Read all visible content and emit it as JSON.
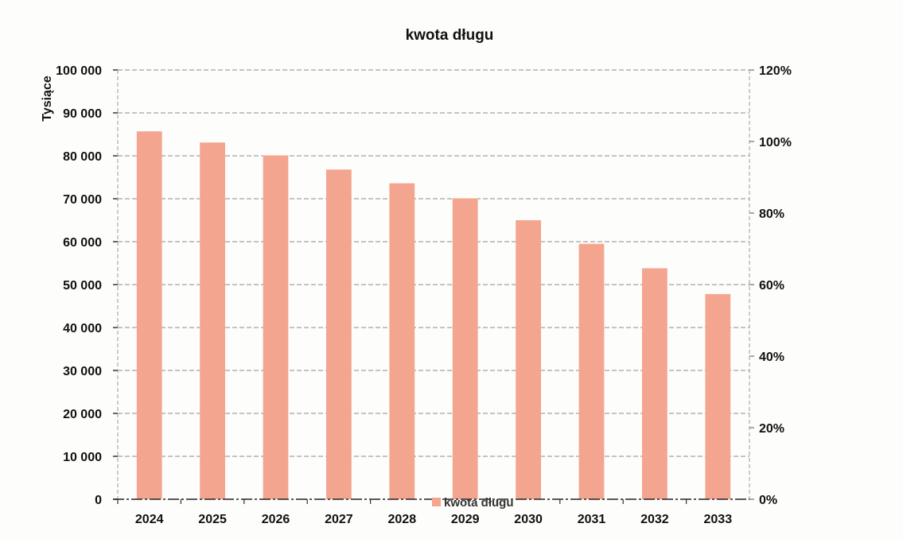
{
  "chart_data": {
    "type": "bar",
    "title": "kwota długu",
    "ylabel": "Tysiące",
    "categories": [
      "2024",
      "2025",
      "2026",
      "2027",
      "2028",
      "2029",
      "2030",
      "2031",
      "2032",
      "2033"
    ],
    "series": [
      {
        "name": "kwota długu",
        "color": "#f4a58f",
        "values": [
          85700,
          83100,
          80100,
          76800,
          73600,
          70100,
          65000,
          59500,
          53800,
          47800
        ]
      }
    ],
    "ylim": [
      0,
      100000
    ],
    "yticks": [
      "0",
      "10 000",
      "20 000",
      "30 000",
      "40 000",
      "50 000",
      "60 000",
      "70 000",
      "80 000",
      "90 000",
      "100 000"
    ],
    "y2lim": [
      0,
      120
    ],
    "y2ticks": [
      "0%",
      "20%",
      "40%",
      "60%",
      "80%",
      "100%",
      "120%"
    ],
    "grid": true,
    "legend_position": "bottom"
  }
}
